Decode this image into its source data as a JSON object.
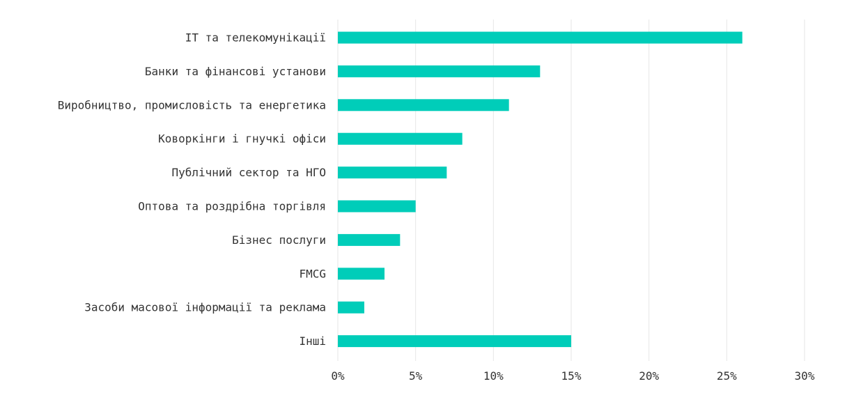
{
  "chart_data": {
    "type": "bar",
    "orientation": "horizontal",
    "categories": [
      "IT та телекомунікації",
      "Банки та фінансові установи",
      "Виробництво, промисловість та енергетика",
      "Коворкінги і гнучкі офіси ",
      "Публічний сектор та НГО ",
      "Оптова та роздрібна торгівля",
      "Бізнес послуги",
      "FMCG",
      "Засоби масової інформації та реклама",
      "Інші"
    ],
    "values": [
      26,
      13,
      11,
      8,
      7,
      5,
      4,
      3,
      1.7,
      15
    ],
    "xlim": [
      0,
      30
    ],
    "x_ticks": [
      0,
      5,
      10,
      15,
      20,
      25,
      30
    ],
    "x_tick_labels": [
      "0%",
      "5%",
      "10%",
      "15%",
      "20%",
      "25%",
      "30%"
    ],
    "title": "",
    "xlabel": "",
    "ylabel": "",
    "grid": "vertical",
    "bar_color": "#00cdb9",
    "grid_color": "#e6e6e6",
    "text_color": "#333333"
  }
}
